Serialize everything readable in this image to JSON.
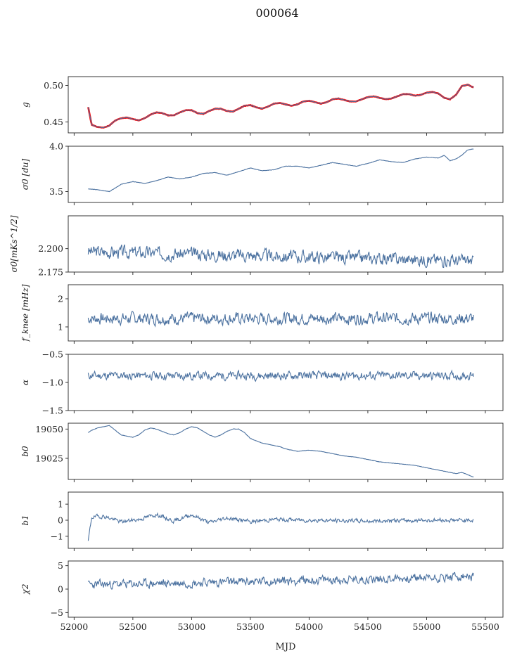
{
  "figure": {
    "title": "000064",
    "xlabel": "MJD",
    "series_color": "#4c72a0",
    "overlay_color": "#ff0000",
    "axis_color": "#222222"
  },
  "chart_data": [
    {
      "type": "line",
      "ylabel": "g",
      "yticks": [
        0.45,
        0.5
      ],
      "ytick_labels": [
        "0.45",
        "0.50"
      ],
      "ylim": [
        0.435,
        0.512
      ],
      "xlim": [
        51950,
        55650
      ],
      "xticks": [
        52000,
        52500,
        53000,
        53500,
        54000,
        54500,
        55000,
        55500
      ],
      "show_xtick_labels": false,
      "series": [
        {
          "x": [
            52120,
            52150,
            52200,
            52250,
            52300,
            52350,
            52400,
            52450,
            52500,
            52550,
            52600,
            52650,
            52700,
            52750,
            52800,
            52850,
            52900,
            52950,
            53000,
            53050,
            53100,
            53150,
            53200,
            53250,
            53300,
            53350,
            53400,
            53450,
            53500,
            53550,
            53600,
            53650,
            53700,
            53750,
            53800,
            53850,
            53900,
            53950,
            54000,
            54050,
            54100,
            54150,
            54200,
            54250,
            54300,
            54350,
            54400,
            54450,
            54500,
            54550,
            54600,
            54650,
            54700,
            54750,
            54800,
            54850,
            54900,
            54950,
            55000,
            55050,
            55100,
            55150,
            55200,
            55250,
            55300,
            55350,
            55400
          ],
          "y": [
            0.47,
            0.446,
            0.443,
            0.442,
            0.445,
            0.452,
            0.455,
            0.456,
            0.454,
            0.452,
            0.455,
            0.46,
            0.463,
            0.462,
            0.459,
            0.459,
            0.463,
            0.466,
            0.466,
            0.462,
            0.461,
            0.465,
            0.468,
            0.468,
            0.465,
            0.464,
            0.468,
            0.472,
            0.473,
            0.47,
            0.468,
            0.471,
            0.475,
            0.476,
            0.474,
            0.472,
            0.474,
            0.478,
            0.479,
            0.477,
            0.475,
            0.477,
            0.481,
            0.482,
            0.48,
            0.478,
            0.478,
            0.481,
            0.484,
            0.485,
            0.483,
            0.481,
            0.482,
            0.485,
            0.488,
            0.488,
            0.486,
            0.487,
            0.49,
            0.491,
            0.489,
            0.483,
            0.481,
            0.487,
            0.499,
            0.501,
            0.497
          ]
        }
      ]
    },
    {
      "type": "line",
      "ylabel": "σ0 [du]",
      "yticks": [
        3.5,
        4.0
      ],
      "ytick_labels": [
        "3.5",
        "4.0"
      ],
      "ylim": [
        3.38,
        4.0
      ],
      "xlim": [
        51950,
        55650
      ],
      "xticks": [
        52000,
        52500,
        53000,
        53500,
        54000,
        54500,
        55000,
        55500
      ],
      "show_xtick_labels": false,
      "series": [
        {
          "x": [
            52120,
            52200,
            52300,
            52400,
            52500,
            52600,
            52700,
            52800,
            52900,
            53000,
            53100,
            53200,
            53300,
            53400,
            53500,
            53600,
            53700,
            53800,
            53900,
            54000,
            54100,
            54200,
            54300,
            54400,
            54500,
            54600,
            54700,
            54800,
            54900,
            55000,
            55100,
            55150,
            55200,
            55250,
            55300,
            55350,
            55400
          ],
          "y": [
            3.53,
            3.52,
            3.5,
            3.58,
            3.61,
            3.59,
            3.62,
            3.66,
            3.64,
            3.66,
            3.7,
            3.71,
            3.68,
            3.72,
            3.76,
            3.73,
            3.74,
            3.78,
            3.78,
            3.76,
            3.79,
            3.82,
            3.8,
            3.78,
            3.81,
            3.85,
            3.83,
            3.82,
            3.86,
            3.88,
            3.87,
            3.9,
            3.84,
            3.86,
            3.9,
            3.96,
            3.97
          ]
        }
      ]
    },
    {
      "type": "line",
      "ylabel": "σ0[mKs^1/2]",
      "yticks": [
        2.175,
        2.2
      ],
      "ytick_labels": [
        "2.175",
        "2.200"
      ],
      "ylim": [
        2.175,
        2.235
      ],
      "xlim": [
        51950,
        55650
      ],
      "xticks": [
        52000,
        52500,
        53000,
        53500,
        54000,
        54500,
        55000,
        55500
      ],
      "show_xtick_labels": false,
      "noise": {
        "mean": 2.197,
        "amplitude": 0.0065,
        "step": 5,
        "seed": 3
      },
      "series": [
        {
          "x": [
            52120,
            55400
          ],
          "y": [
            2.197,
            2.187
          ]
        }
      ]
    },
    {
      "type": "line",
      "ylabel": "f_knee [mHz]",
      "yticks": [
        1,
        2
      ],
      "ytick_labels": [
        "1",
        "2"
      ],
      "ylim": [
        0.5,
        2.5
      ],
      "xlim": [
        51950,
        55650
      ],
      "xticks": [
        52000,
        52500,
        53000,
        53500,
        54000,
        54500,
        55000,
        55500
      ],
      "show_xtick_labels": false,
      "noise": {
        "mean": 1.3,
        "amplitude": 0.2,
        "step": 5,
        "seed": 7
      },
      "series": [
        {
          "x": [
            52120,
            55400
          ],
          "y": [
            1.3,
            1.3
          ]
        }
      ]
    },
    {
      "type": "line",
      "ylabel": "α",
      "yticks": [
        -1.5,
        -1.0,
        -0.5
      ],
      "ytick_labels": [
        "−1.5",
        "−1.0",
        "−0.5"
      ],
      "ylim": [
        -1.5,
        -0.5
      ],
      "xlim": [
        51950,
        55650
      ],
      "xticks": [
        52000,
        52500,
        53000,
        53500,
        54000,
        54500,
        55000,
        55500
      ],
      "show_xtick_labels": false,
      "noise": {
        "mean": -0.88,
        "amplitude": 0.07,
        "step": 5,
        "seed": 11
      },
      "series": [
        {
          "x": [
            52120,
            55400
          ],
          "y": [
            -0.88,
            -0.88
          ]
        }
      ]
    },
    {
      "type": "line",
      "ylabel": "b0",
      "yticks": [
        19025,
        19050
      ],
      "ytick_labels": [
        "19025",
        "19050"
      ],
      "ylim": [
        19007,
        19055
      ],
      "xlim": [
        51950,
        55650
      ],
      "xticks": [
        52000,
        52500,
        53000,
        53500,
        54000,
        54500,
        55000,
        55500
      ],
      "show_xtick_labels": false,
      "series": [
        {
          "x": [
            52120,
            52150,
            52200,
            52250,
            52300,
            52350,
            52400,
            52450,
            52500,
            52550,
            52600,
            52650,
            52700,
            52750,
            52800,
            52850,
            52900,
            52950,
            53000,
            53050,
            53100,
            53150,
            53200,
            53250,
            53300,
            53350,
            53400,
            53450,
            53500,
            53550,
            53600,
            53650,
            53700,
            53750,
            53800,
            53900,
            54000,
            54100,
            54200,
            54300,
            54400,
            54500,
            54600,
            54700,
            54800,
            54900,
            55000,
            55100,
            55150,
            55200,
            55250,
            55300,
            55350,
            55400
          ],
          "y": [
            19047,
            19049,
            19051,
            19052,
            19053,
            19049,
            19045,
            19044,
            19043,
            19045,
            19049,
            19051,
            19050,
            19048,
            19046,
            19045,
            19047,
            19050,
            19052,
            19051,
            19048,
            19045,
            19043,
            19045,
            19048,
            19050,
            19050,
            19047,
            19042,
            19040,
            19038,
            19037,
            19036,
            19035,
            19033,
            19031,
            19032,
            19031,
            19029,
            19027,
            19026,
            19024,
            19022,
            19021,
            19020,
            19019,
            19017,
            19015,
            19014,
            19013,
            19012,
            19013,
            19011,
            19009
          ]
        }
      ]
    },
    {
      "type": "line",
      "ylabel": "b1",
      "yticks": [
        -1,
        0,
        1
      ],
      "ytick_labels": [
        "−1",
        "0",
        "1"
      ],
      "ylim": [
        -1.75,
        1.75
      ],
      "xlim": [
        51950,
        55650
      ],
      "xticks": [
        52000,
        52500,
        53000,
        53500,
        54000,
        54500,
        55000,
        55500
      ],
      "show_xtick_labels": false,
      "noise": {
        "mean": 0.0,
        "amplitude": 0.12,
        "step": 5,
        "seed": 19
      },
      "series": [
        {
          "x": [
            52120,
            52150,
            52250,
            52400,
            52550,
            52700,
            52850,
            53000,
            53150,
            53300,
            53500,
            53700,
            54000,
            54500,
            55000,
            55400
          ],
          "y": [
            -1.3,
            0.2,
            0.25,
            -0.1,
            0.05,
            0.35,
            -0.05,
            0.35,
            -0.15,
            0.15,
            -0.1,
            0.05,
            0.0,
            -0.05,
            0.0,
            0.0
          ]
        }
      ]
    },
    {
      "type": "line",
      "ylabel": "χ2",
      "yticks": [
        -5,
        0,
        5
      ],
      "ytick_labels": [
        "−5",
        "0",
        "5"
      ],
      "ylim": [
        -6,
        6
      ],
      "xlim": [
        51950,
        55650
      ],
      "xticks": [
        52000,
        52500,
        53000,
        53500,
        54000,
        54500,
        55000,
        55500
      ],
      "xtick_labels": [
        "52000",
        "52500",
        "53000",
        "53500",
        "54000",
        "54500",
        "55000",
        "55500"
      ],
      "show_xtick_labels": true,
      "noise": {
        "mean": 1.4,
        "amplitude": 0.9,
        "step": 5,
        "seed": 23
      },
      "series": [
        {
          "x": [
            52120,
            55400
          ],
          "y": [
            0.9,
            2.6
          ]
        }
      ]
    }
  ]
}
